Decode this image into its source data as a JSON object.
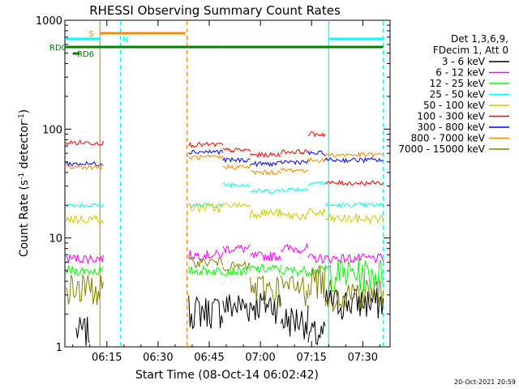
{
  "chart_data": {
    "type": "line",
    "title": "RHESSI Observing Summary Count Rates",
    "xlabel": "Start Time (08-Oct-14 06:02:42)",
    "ylabel_prefix": "Count Rate (s",
    "ylabel_sup1": "-1",
    "ylabel_mid": " detector",
    "ylabel_sup2": "-1",
    "ylabel_suffix": ")",
    "x_start_minutes": 2.7,
    "x_end_minutes": 98.0,
    "x_ticks": [
      {
        "minutes": 15,
        "label": "06:15"
      },
      {
        "minutes": 30,
        "label": "06:30"
      },
      {
        "minutes": 45,
        "label": "06:45"
      },
      {
        "minutes": 60,
        "label": "07:00"
      },
      {
        "minutes": 75,
        "label": "07:15"
      },
      {
        "minutes": 90,
        "label": "07:30"
      }
    ],
    "ylim": [
      1,
      1000
    ],
    "y_scale": "log",
    "y_ticks": [
      {
        "value": 1,
        "label": "1"
      },
      {
        "value": 10,
        "label": "10"
      },
      {
        "value": 100,
        "label": "100"
      },
      {
        "value": 1000,
        "label": "1000"
      }
    ],
    "legend_header": [
      "Det 1,3,6,9,",
      "FDecim 1, Att 0"
    ],
    "series": [
      {
        "name": "3 - 6 keV",
        "color": "#000000",
        "segments": [
          [
            6,
            10,
            1.4
          ],
          [
            39,
            49,
            2.2
          ],
          [
            49,
            57,
            2.4
          ],
          [
            57,
            66,
            2.5
          ],
          [
            66,
            74,
            1.8
          ],
          [
            74,
            79,
            1.3
          ],
          [
            79,
            93,
            2.6
          ],
          [
            93,
            96,
            2.6
          ]
        ]
      },
      {
        "name": "6 - 12 keV",
        "color": "#ff00ff",
        "segments": [
          [
            3,
            14,
            6.5
          ],
          [
            39,
            49,
            7.0
          ],
          [
            49,
            57,
            8.0
          ],
          [
            57,
            66,
            6.8
          ],
          [
            66,
            74,
            8.0
          ],
          [
            74,
            79,
            6.5
          ],
          [
            79,
            96,
            6.5
          ]
        ]
      },
      {
        "name": "12 - 25 keV",
        "color": "#00ff00",
        "segments": [
          [
            3,
            14,
            5.0
          ],
          [
            39,
            49,
            5.0
          ],
          [
            49,
            57,
            5.0
          ],
          [
            57,
            66,
            5.2
          ],
          [
            66,
            74,
            5.0
          ],
          [
            74,
            79,
            5.0
          ],
          [
            79,
            96,
            4.8
          ]
        ]
      },
      {
        "name": "25 - 50 keV",
        "color": "#00ffff",
        "segments": [
          [
            3,
            14,
            20
          ],
          [
            39,
            49,
            20
          ],
          [
            49,
            57,
            31
          ],
          [
            57,
            66,
            27
          ],
          [
            66,
            74,
            28
          ],
          [
            74,
            79,
            32
          ],
          [
            79,
            96,
            20
          ]
        ]
      },
      {
        "name": "50 - 100 keV",
        "color": "#cccc00",
        "segments": [
          [
            3,
            14,
            15
          ],
          [
            39,
            49,
            19
          ],
          [
            49,
            57,
            20
          ],
          [
            57,
            66,
            17
          ],
          [
            66,
            74,
            16
          ],
          [
            74,
            79,
            17
          ],
          [
            79,
            96,
            15
          ]
        ]
      },
      {
        "name": "100 - 300 keV",
        "color": "#ff0000",
        "segments": [
          [
            3,
            14,
            75
          ],
          [
            39,
            49,
            72
          ],
          [
            49,
            57,
            64
          ],
          [
            57,
            66,
            58
          ],
          [
            66,
            74,
            62
          ],
          [
            74,
            79,
            90
          ],
          [
            79,
            96,
            32
          ]
        ]
      },
      {
        "name": "300 - 800 keV",
        "color": "#0000ff",
        "segments": [
          [
            3,
            14,
            48
          ],
          [
            39,
            49,
            62
          ],
          [
            49,
            57,
            52
          ],
          [
            57,
            66,
            48
          ],
          [
            66,
            74,
            50
          ],
          [
            74,
            79,
            60
          ],
          [
            79,
            96,
            52
          ]
        ]
      },
      {
        "name": "800 - 7000 keV",
        "color": "#ff8800",
        "segments": [
          [
            3,
            14,
            45
          ],
          [
            39,
            49,
            55
          ],
          [
            49,
            57,
            45
          ],
          [
            57,
            66,
            40
          ],
          [
            66,
            74,
            42
          ],
          [
            74,
            79,
            52
          ],
          [
            79,
            96,
            58
          ]
        ]
      },
      {
        "name": "7000 - 15000 keV",
        "color": "#808000",
        "segments": [
          [
            3,
            14,
            3.5
          ],
          [
            39,
            49,
            6.0
          ],
          [
            49,
            57,
            5.5
          ],
          [
            57,
            66,
            3.5
          ],
          [
            66,
            74,
            3.5
          ],
          [
            74,
            79,
            4.2
          ],
          [
            79,
            96,
            3.2
          ]
        ]
      }
    ],
    "flag_bars": [
      {
        "label": "S",
        "color": "#ff8800",
        "segments": [
          [
            13,
            38
          ]
        ]
      },
      {
        "label": "N",
        "color": "#00ffff",
        "segments": [
          [
            3,
            13
          ],
          [
            80,
            96
          ]
        ]
      },
      {
        "label": "RD0",
        "color": "#008000",
        "segments": [
          [
            3,
            39
          ],
          [
            39,
            49
          ],
          [
            49,
            81
          ],
          [
            81,
            96
          ]
        ]
      },
      {
        "label": "RD6",
        "color": "#008000",
        "segments": [
          [
            5,
            7
          ]
        ]
      }
    ],
    "vertical_markers": [
      {
        "minutes": 13.0,
        "color": "#ff8800",
        "style": "solid"
      },
      {
        "minutes": 19.0,
        "color": "#00ffff",
        "style": "dashed"
      },
      {
        "minutes": 38.5,
        "color": "#ff8800",
        "style": "dashed"
      },
      {
        "minutes": 80.0,
        "color": "#00ffff",
        "style": "solid"
      },
      {
        "minutes": 96.0,
        "color": "#00ffff",
        "style": "dashed"
      }
    ],
    "grid": false,
    "legend_position": "right"
  },
  "footer_date": "20-Oct-2021 20:59"
}
